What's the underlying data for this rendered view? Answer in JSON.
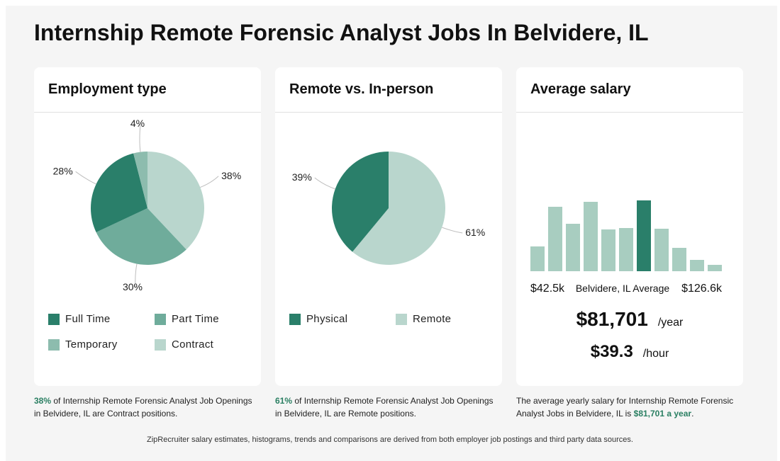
{
  "page": {
    "title": "Internship Remote Forensic Analyst Jobs In Belvidere, IL",
    "footer": "ZipRecruiter salary estimates, histograms, trends and comparisons are derived from both employer job postings and third party data sources."
  },
  "colors": {
    "dark_green": "#2a7f6a",
    "mid_green": "#6fac9b",
    "light_green": "#8dbcae",
    "pale_green": "#b9d6cd",
    "hist_bar": "#a8cdc0",
    "highlight": "#2a7f62"
  },
  "employment": {
    "title": "Employment type",
    "caption_pct": "38%",
    "caption_rest": " of Internship Remote Forensic Analyst Job Openings in Belvidere, IL are Contract positions."
  },
  "remote": {
    "title": "Remote vs. In-person",
    "caption_pct": "61%",
    "caption_rest": " of Internship Remote Forensic Analyst Job Openings in Belvidere, IL are Remote positions."
  },
  "salary": {
    "title": "Average salary",
    "min_label": "$42.5k",
    "mid_label": "Belvidere, IL Average",
    "max_label": "$126.6k",
    "yearly": "$81,701",
    "yearly_unit": "/year",
    "hourly": "$39.3",
    "hourly_unit": "/hour",
    "caption_pre": "The average yearly salary for Internship Remote Forensic Analyst Jobs in Belvidere, IL is ",
    "caption_hl": "$81,701 a year",
    "caption_post": "."
  },
  "chart_data": [
    {
      "type": "pie",
      "title": "Employment type",
      "labels": [
        "Full Time",
        "Part Time",
        "Temporary",
        "Contract"
      ],
      "values": [
        28,
        30,
        4,
        38
      ],
      "value_labels": [
        "28%",
        "30%",
        "4%",
        "38%"
      ],
      "colors": [
        "#2a7f6a",
        "#6fac9b",
        "#8dbcae",
        "#b9d6cd"
      ],
      "legend": "bottom"
    },
    {
      "type": "pie",
      "title": "Remote vs. In-person",
      "labels": [
        "Physical",
        "Remote"
      ],
      "values": [
        39,
        61
      ],
      "value_labels": [
        "39%",
        "61%"
      ],
      "colors": [
        "#2a7f6a",
        "#b9d6cd"
      ],
      "legend": "bottom"
    },
    {
      "type": "bar",
      "title": "Average salary",
      "x_range": [
        "$42.5k",
        "$126.6k"
      ],
      "values": [
        35,
        91,
        67,
        98,
        59,
        61,
        100,
        60,
        33,
        16,
        9
      ],
      "highlight_index": 6,
      "grid": false
    }
  ]
}
